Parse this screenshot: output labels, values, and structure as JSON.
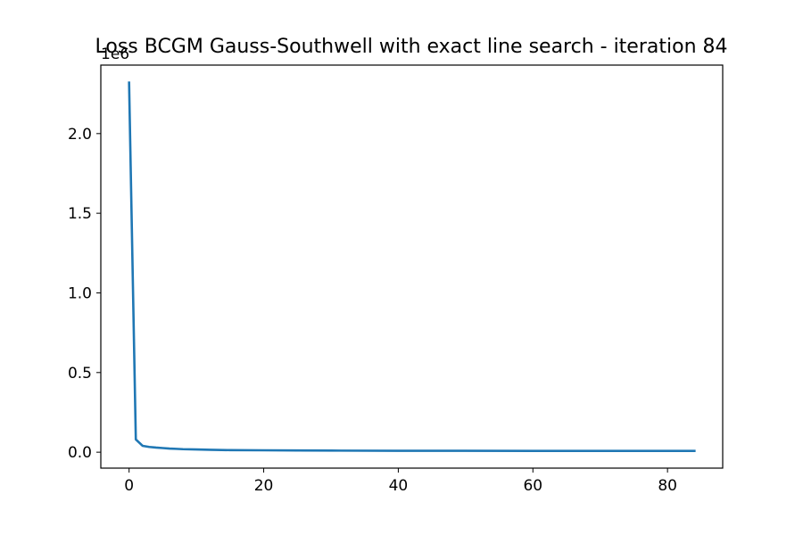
{
  "chart_data": {
    "type": "line",
    "title": "Loss BCGM Gauss-Southwell with exact line search - iteration 84",
    "xlabel": "",
    "ylabel": "",
    "y_offset_label": "1e6",
    "y_scale": 1000000,
    "xlim": [
      -4.2,
      88.2
    ],
    "ylim": [
      -0.1,
      2.43
    ],
    "x_ticks": [
      0,
      20,
      40,
      60,
      80
    ],
    "x_tick_labels": [
      "0",
      "20",
      "40",
      "60",
      "80"
    ],
    "y_ticks": [
      0.0,
      0.5,
      1.0,
      1.5,
      2.0
    ],
    "y_tick_labels": [
      "0.0",
      "0.5",
      "1.0",
      "1.5",
      "2.0"
    ],
    "grid": false,
    "legend": "none",
    "series": [
      {
        "color": "#1f77b4",
        "x": [
          0,
          1,
          2,
          3,
          4,
          5,
          6,
          7,
          8,
          10,
          12,
          15,
          20,
          25,
          30,
          40,
          50,
          60,
          70,
          84
        ],
        "y": [
          2.32,
          0.08,
          0.04,
          0.033,
          0.029,
          0.026,
          0.023,
          0.021,
          0.019,
          0.017,
          0.015,
          0.013,
          0.012,
          0.011,
          0.01,
          0.009,
          0.009,
          0.008,
          0.008,
          0.008
        ]
      }
    ]
  }
}
